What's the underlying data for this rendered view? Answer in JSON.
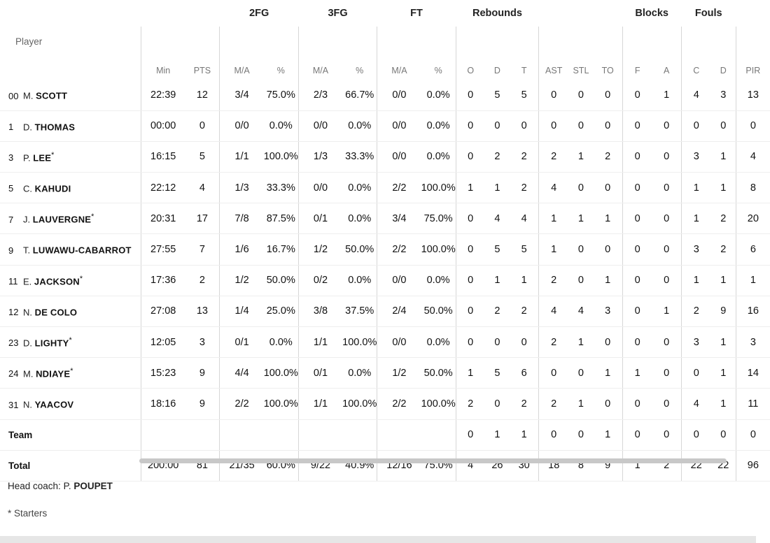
{
  "groups": {
    "fg2": "2FG",
    "fg3": "3FG",
    "ft": "FT",
    "reb": "Rebounds",
    "blk": "Blocks",
    "fouls": "Fouls"
  },
  "headers": {
    "player": "Player",
    "min": "Min",
    "pts": "PTS",
    "fg2_ma": "M/A",
    "fg2_pct": "%",
    "fg3_ma": "M/A",
    "fg3_pct": "%",
    "ft_ma": "M/A",
    "ft_pct": "%",
    "reb_o": "O",
    "reb_d": "D",
    "reb_t": "T",
    "ast": "AST",
    "stl": "STL",
    "to": "TO",
    "blk_f": "F",
    "blk_a": "A",
    "foul_c": "C",
    "foul_d": "D",
    "pir": "PIR"
  },
  "rows": [
    {
      "num": "00",
      "first": "M.",
      "last": "SCOTT",
      "star": "",
      "stats": [
        "22:39",
        "12",
        "3/4",
        "75.0%",
        "2/3",
        "66.7%",
        "0/0",
        "0.0%",
        "0",
        "5",
        "5",
        "0",
        "0",
        "0",
        "0",
        "1",
        "4",
        "3",
        "13"
      ]
    },
    {
      "num": "1",
      "first": "D.",
      "last": "THOMAS",
      "star": "",
      "stats": [
        "00:00",
        "0",
        "0/0",
        "0.0%",
        "0/0",
        "0.0%",
        "0/0",
        "0.0%",
        "0",
        "0",
        "0",
        "0",
        "0",
        "0",
        "0",
        "0",
        "0",
        "0",
        "0"
      ]
    },
    {
      "num": "3",
      "first": "P.",
      "last": "LEE",
      "star": "*",
      "stats": [
        "16:15",
        "5",
        "1/1",
        "100.0%",
        "1/3",
        "33.3%",
        "0/0",
        "0.0%",
        "0",
        "2",
        "2",
        "2",
        "1",
        "2",
        "0",
        "0",
        "3",
        "1",
        "4"
      ]
    },
    {
      "num": "5",
      "first": "C.",
      "last": "KAHUDI",
      "star": "",
      "stats": [
        "22:12",
        "4",
        "1/3",
        "33.3%",
        "0/0",
        "0.0%",
        "2/2",
        "100.0%",
        "1",
        "1",
        "2",
        "4",
        "0",
        "0",
        "0",
        "0",
        "1",
        "1",
        "8"
      ]
    },
    {
      "num": "7",
      "first": "J.",
      "last": "LAUVERGNE",
      "star": "*",
      "stats": [
        "20:31",
        "17",
        "7/8",
        "87.5%",
        "0/1",
        "0.0%",
        "3/4",
        "75.0%",
        "0",
        "4",
        "4",
        "1",
        "1",
        "1",
        "0",
        "0",
        "1",
        "2",
        "20"
      ]
    },
    {
      "num": "9",
      "first": "T.",
      "last": "LUWAWU-CABARROT",
      "star": "",
      "stats": [
        "27:55",
        "7",
        "1/6",
        "16.7%",
        "1/2",
        "50.0%",
        "2/2",
        "100.0%",
        "0",
        "5",
        "5",
        "1",
        "0",
        "0",
        "0",
        "0",
        "3",
        "2",
        "6"
      ]
    },
    {
      "num": "11",
      "first": "E.",
      "last": "JACKSON",
      "star": "*",
      "stats": [
        "17:36",
        "2",
        "1/2",
        "50.0%",
        "0/2",
        "0.0%",
        "0/0",
        "0.0%",
        "0",
        "1",
        "1",
        "2",
        "0",
        "1",
        "0",
        "0",
        "1",
        "1",
        "1"
      ]
    },
    {
      "num": "12",
      "first": "N.",
      "last": "DE COLO",
      "star": "",
      "stats": [
        "27:08",
        "13",
        "1/4",
        "25.0%",
        "3/8",
        "37.5%",
        "2/4",
        "50.0%",
        "0",
        "2",
        "2",
        "4",
        "4",
        "3",
        "0",
        "1",
        "2",
        "9",
        "16"
      ]
    },
    {
      "num": "23",
      "first": "D.",
      "last": "LIGHTY",
      "star": "*",
      "stats": [
        "12:05",
        "3",
        "0/1",
        "0.0%",
        "1/1",
        "100.0%",
        "0/0",
        "0.0%",
        "0",
        "0",
        "0",
        "2",
        "1",
        "0",
        "0",
        "0",
        "3",
        "1",
        "3"
      ]
    },
    {
      "num": "24",
      "first": "M.",
      "last": "NDIAYE",
      "star": "*",
      "stats": [
        "15:23",
        "9",
        "4/4",
        "100.0%",
        "0/1",
        "0.0%",
        "1/2",
        "50.0%",
        "1",
        "5",
        "6",
        "0",
        "0",
        "1",
        "1",
        "0",
        "0",
        "1",
        "14"
      ]
    },
    {
      "num": "31",
      "first": "N.",
      "last": "YAACOV",
      "star": "",
      "stats": [
        "18:16",
        "9",
        "2/2",
        "100.0%",
        "1/1",
        "100.0%",
        "2/2",
        "100.0%",
        "2",
        "0",
        "2",
        "2",
        "1",
        "0",
        "0",
        "0",
        "4",
        "1",
        "11"
      ]
    }
  ],
  "team": {
    "label": "Team",
    "stats": [
      "",
      "",
      "",
      "",
      "",
      "",
      "",
      "",
      "0",
      "1",
      "1",
      "0",
      "0",
      "1",
      "0",
      "0",
      "0",
      "0",
      "0"
    ]
  },
  "total": {
    "label": "Total",
    "stats": [
      "200:00",
      "81",
      "21/35",
      "60.0%",
      "9/22",
      "40.9%",
      "12/16",
      "75.0%",
      "4",
      "26",
      "30",
      "18",
      "8",
      "9",
      "1",
      "2",
      "22",
      "22",
      "96"
    ]
  },
  "coach": {
    "prefix": "Head coach: ",
    "first": "P.",
    "last": "POUPET"
  },
  "note": "* Starters"
}
